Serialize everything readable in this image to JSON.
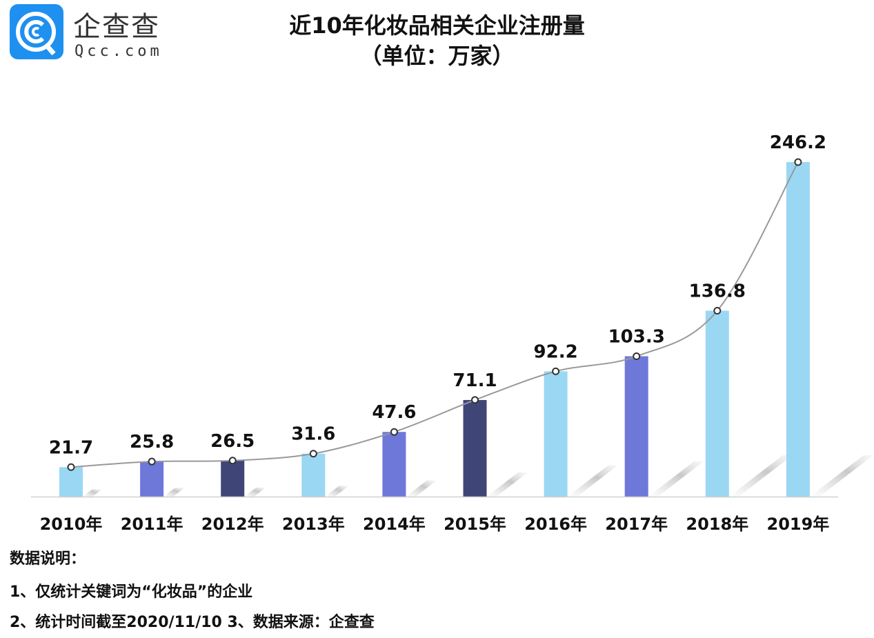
{
  "logo": {
    "cn": "企查查",
    "en": "Qcc.com"
  },
  "chart_data": {
    "type": "bar",
    "title": "近10年化妆品相关企业注册量",
    "subtitle": "（单位：万家）",
    "categories": [
      "2010年",
      "2011年",
      "2012年",
      "2013年",
      "2014年",
      "2015年",
      "2016年",
      "2017年",
      "2018年",
      "2019年"
    ],
    "values": [
      21.7,
      25.8,
      26.5,
      31.6,
      47.6,
      71.1,
      92.2,
      103.3,
      136.8,
      246.2
    ],
    "ylim": [
      0,
      250
    ],
    "grid": false,
    "overlay": "smoothed line with circle markers through bar tops",
    "colors": [
      "#9ad7f3",
      "#6e78d9",
      "#3f4677",
      "#9ad7f3",
      "#6e78d9",
      "#3f4677",
      "#9ad7f3",
      "#6e78d9",
      "#9ad7f3",
      "#9ad7f3"
    ],
    "line_color": "#999999"
  },
  "notes": {
    "heading": "数据说明：",
    "line1": "1、仅统计关键词为“化妆品”的企业",
    "line2": "2、统计时间截至2020/11/10   3、数据来源：企查查"
  }
}
